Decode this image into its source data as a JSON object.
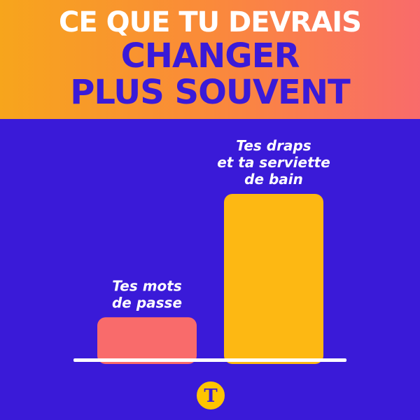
{
  "header": {
    "line1": "CE QUE TU DEVRAIS",
    "line2": "CHANGER",
    "line3": "PLUS SOUVENT"
  },
  "colors": {
    "background": "#3A1AD8",
    "bar_low": "#F96B6B",
    "bar_high": "#FDB813",
    "baseline": "#FFFFFF"
  },
  "chart_data": {
    "type": "bar",
    "title": "CE QUE TU DEVRAIS CHANGER PLUS SOUVENT",
    "xlabel": "",
    "ylabel": "",
    "ylim": [
      0,
      100
    ],
    "grid": false,
    "categories": [
      "Tes mots de passe",
      "Tes draps et ta serviette de bain"
    ],
    "category_lines": [
      [
        "Tes mots",
        "de passe"
      ],
      [
        "Tes draps",
        "et ta serviette",
        "de bain"
      ]
    ],
    "values": [
      25,
      100
    ]
  },
  "logo": {
    "text": "T",
    "icon": "brand-logo-icon"
  }
}
